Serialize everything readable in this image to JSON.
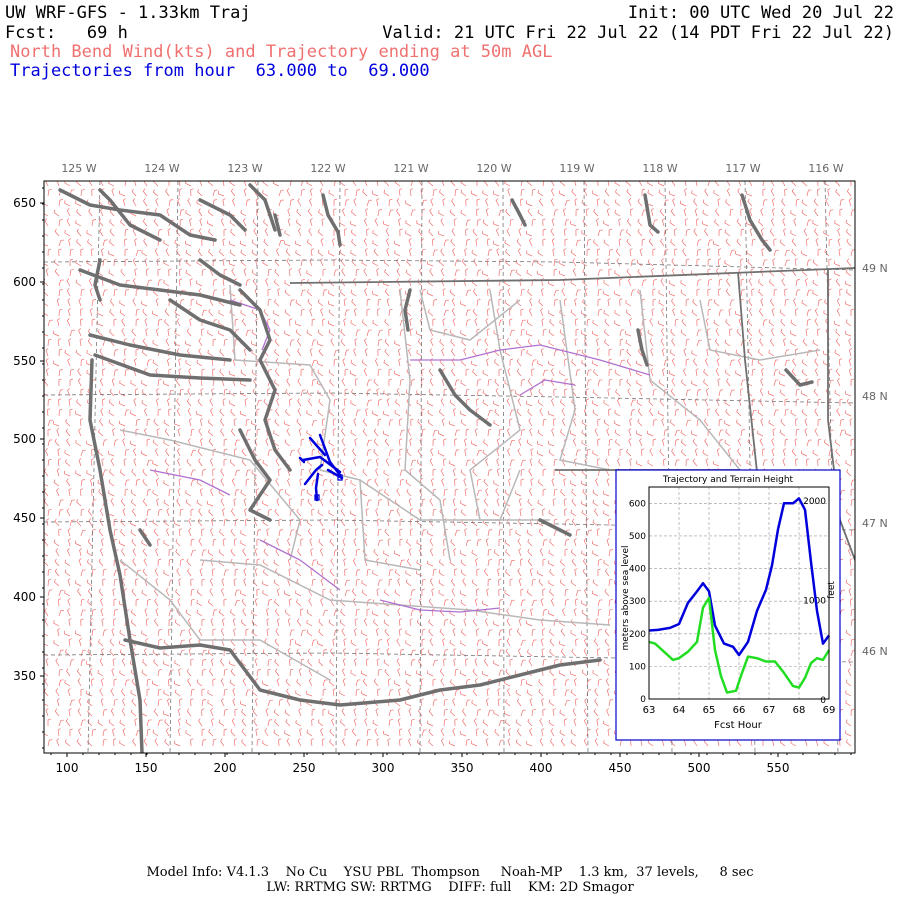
{
  "header": {
    "model_title": "UW WRF-GFS - 1.33km Traj",
    "init": "Init: 00 UTC Wed 20 Jul 22",
    "fcst": "Fcst:   69 h",
    "valid": "Valid: 21 UTC Fri 22 Jul 22 (14 PDT Fri 22 Jul 22)",
    "product": "North Bend Wind(kts) and Trajectory ending at 50m AGL",
    "traj_range": "Trajectories from hour  63.000 to  69.000"
  },
  "map": {
    "lon_labels": [
      "125 W",
      "124 W",
      "123 W",
      "122 W",
      "121 W",
      "120 W",
      "119 W",
      "118 W",
      "117 W",
      "116 W"
    ],
    "lat_labels": [
      "49 N",
      "48 N",
      "47 N",
      "46 N"
    ],
    "y_ticks": [
      "650",
      "600",
      "550",
      "500",
      "450",
      "400",
      "350"
    ],
    "x_ticks": [
      "100",
      "150",
      "200",
      "250",
      "300",
      "350",
      "400",
      "450",
      "500",
      "550"
    ],
    "colors": {
      "wind_barbs": "#f07070",
      "coast": "#707070",
      "borders": "#b0b0b0",
      "rivers": "#b070d0",
      "trajectory": "#0000dd"
    }
  },
  "inset": {
    "title": "Trajectory and Terrain Height",
    "ylabel": "meters above sea level",
    "ylabel_right": "feet",
    "xlabel": "Fcst Hour",
    "x_ticks": [
      "63",
      "64",
      "65",
      "66",
      "67",
      "68",
      "69"
    ],
    "y_ticks": [
      "0",
      "100",
      "200",
      "300",
      "400",
      "500",
      "600"
    ],
    "ft_ticks": [
      "0",
      "1000",
      "2000"
    ]
  },
  "chart_data": {
    "type": "line",
    "title": "Trajectory and Terrain Height",
    "xlabel": "Fcst Hour",
    "ylabel": "meters above sea level",
    "xlim": [
      63,
      69
    ],
    "ylim": [
      0,
      650
    ],
    "series": [
      {
        "color": "#0000dd",
        "x": [
          63,
          63.3,
          63.7,
          64,
          64.3,
          64.6,
          64.8,
          65,
          65.2,
          65.5,
          65.8,
          66,
          66.3,
          66.6,
          66.9,
          67.1,
          67.3,
          67.5,
          67.8,
          68,
          68.2,
          68.4,
          68.6,
          68.8,
          69
        ],
        "y": [
          210,
          212,
          218,
          230,
          295,
          330,
          355,
          330,
          225,
          170,
          160,
          135,
          175,
          270,
          335,
          410,
          520,
          600,
          600,
          615,
          580,
          420,
          270,
          170,
          195
        ]
      },
      {
        "color": "#22dd22",
        "x": [
          63,
          63.2,
          63.5,
          63.8,
          64,
          64.3,
          64.6,
          64.8,
          65,
          65.2,
          65.4,
          65.6,
          65.9,
          66.1,
          66.3,
          66.6,
          66.9,
          67.2,
          67.5,
          67.8,
          68,
          68.2,
          68.4,
          68.6,
          68.8,
          69
        ],
        "y": [
          175,
          170,
          145,
          120,
          125,
          145,
          175,
          280,
          310,
          150,
          70,
          20,
          25,
          80,
          130,
          125,
          115,
          115,
          80,
          40,
          35,
          65,
          110,
          125,
          120,
          150
        ]
      }
    ]
  },
  "footer": {
    "line1": "Model Info: V4.1.3    No Cu    YSU PBL  Thompson     Noah-MP    1.3 km,  37 levels,     8 sec",
    "line2": "LW: RRTMG SW: RRTMG    DIFF: full    KM: 2D Smagor"
  }
}
